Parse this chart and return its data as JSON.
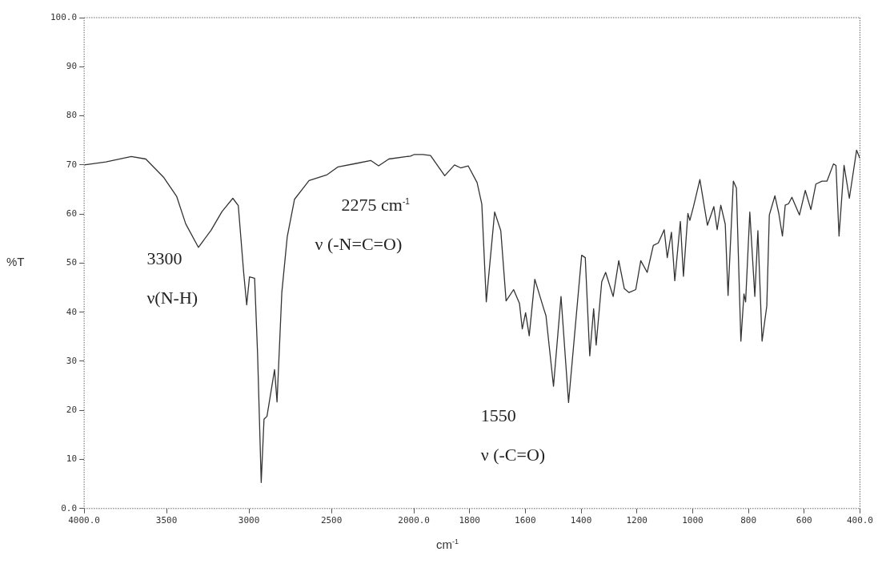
{
  "chart_data": [
    {
      "type": "line",
      "ylabel": "%T",
      "color": "#333333",
      "x": [
        4000,
        3868,
        3714,
        3626,
        3516,
        3439,
        3384,
        3307,
        3230,
        3164,
        3098,
        3065,
        3032,
        3014,
        2997,
        2966,
        2948,
        2926,
        2909,
        2891,
        2845,
        2830,
        2801,
        2768,
        2724,
        2680,
        2636,
        2526,
        2460,
        2350,
        2262,
        2214,
        2152,
        2020,
        2000
      ],
      "values": [
        70.0,
        70.6,
        71.7,
        71.2,
        67.4,
        63.6,
        58,
        53.2,
        56.7,
        60.5,
        63.2,
        61.7,
        47.9,
        41.5,
        47.2,
        46.9,
        31.5,
        5.3,
        18.2,
        18.8,
        28.3,
        21.7,
        44,
        55.4,
        63,
        64.9,
        66.8,
        68,
        69.6,
        70.3,
        70.9,
        69.8,
        71.2,
        71.8,
        72.1
      ],
      "xlim": [
        4000,
        2000
      ],
      "xticks": [
        {
          "value": 4000,
          "label": "4000.0"
        },
        3500,
        3000,
        2500,
        {
          "value": 2000,
          "label": "2000.0"
        }
      ],
      "ylim": [
        0,
        100
      ],
      "yticks": [
        {
          "value": 0,
          "label": "0.0"
        },
        10,
        20,
        30,
        40,
        50,
        60,
        70,
        80,
        90,
        {
          "value": 100,
          "label": "100.0"
        }
      ],
      "grid": false,
      "legend": false,
      "annotations": [
        "3300",
        "ν(N-H)",
        "2275 cm$^{-1}$",
        "ν (-N=C=O)"
      ]
    },
    {
      "type": "line",
      "xlabel": "cm$^{-1}$",
      "color": "#333333",
      "x": [
        2000,
        1967,
        1940,
        1889,
        1854,
        1832,
        1805,
        1773,
        1756,
        1740,
        1710,
        1688,
        1669,
        1642,
        1621,
        1611,
        1599,
        1586,
        1566,
        1534,
        1526,
        1499,
        1472,
        1445,
        1398,
        1385,
        1369,
        1355,
        1346,
        1326,
        1312,
        1285,
        1265,
        1245,
        1228,
        1204,
        1186,
        1163,
        1141,
        1123,
        1102,
        1091,
        1076,
        1064,
        1044,
        1033,
        1017,
        1010,
        997,
        974,
        947,
        924,
        912,
        899,
        883,
        873,
        854,
        843,
        827,
        816,
        810,
        795,
        777,
        766,
        751,
        734,
        725,
        705,
        691,
        678,
        668,
        656,
        644,
        617,
        596,
        576,
        558,
        536,
        518,
        495,
        486,
        475,
        457,
        438,
        412,
        400
      ],
      "values": [
        72.1,
        72.1,
        71.9,
        67.8,
        70,
        69.4,
        69.8,
        66.4,
        62,
        42.1,
        60.4,
        56.6,
        42.3,
        44.6,
        41.8,
        36.6,
        39.9,
        35.2,
        46.7,
        40.7,
        39.3,
        24.9,
        43.2,
        21.6,
        51.6,
        51.1,
        31.1,
        40.7,
        33.3,
        46.2,
        48.1,
        43.2,
        50.5,
        44.8,
        44,
        44.6,
        50.5,
        48.1,
        53.6,
        54.1,
        56.8,
        51.1,
        56.3,
        46.4,
        58.5,
        47.3,
        60.1,
        58.7,
        61.5,
        67,
        57.7,
        61.5,
        56.8,
        61.8,
        57.9,
        43.4,
        66.7,
        65.3,
        34.1,
        43.7,
        42.1,
        60.4,
        43.2,
        56.6,
        34.1,
        41.3,
        59.8,
        63.7,
        60.1,
        55.5,
        61.8,
        62.1,
        63.4,
        59.8,
        64.8,
        60.9,
        66.1,
        66.7,
        66.7,
        70.2,
        69.9,
        55.5,
        69.9,
        63.2,
        73,
        71.3
      ],
      "xlim": [
        2000,
        400
      ],
      "xticks": [
        1800,
        1600,
        1400,
        1200,
        1000,
        800,
        600,
        {
          "value": 400,
          "label": "400.0"
        }
      ],
      "ylim": [
        0,
        100
      ],
      "tick_labels": "x",
      "grid": false,
      "legend": false,
      "annotations": [
        "1550",
        "ν (-C=O)"
      ]
    }
  ]
}
